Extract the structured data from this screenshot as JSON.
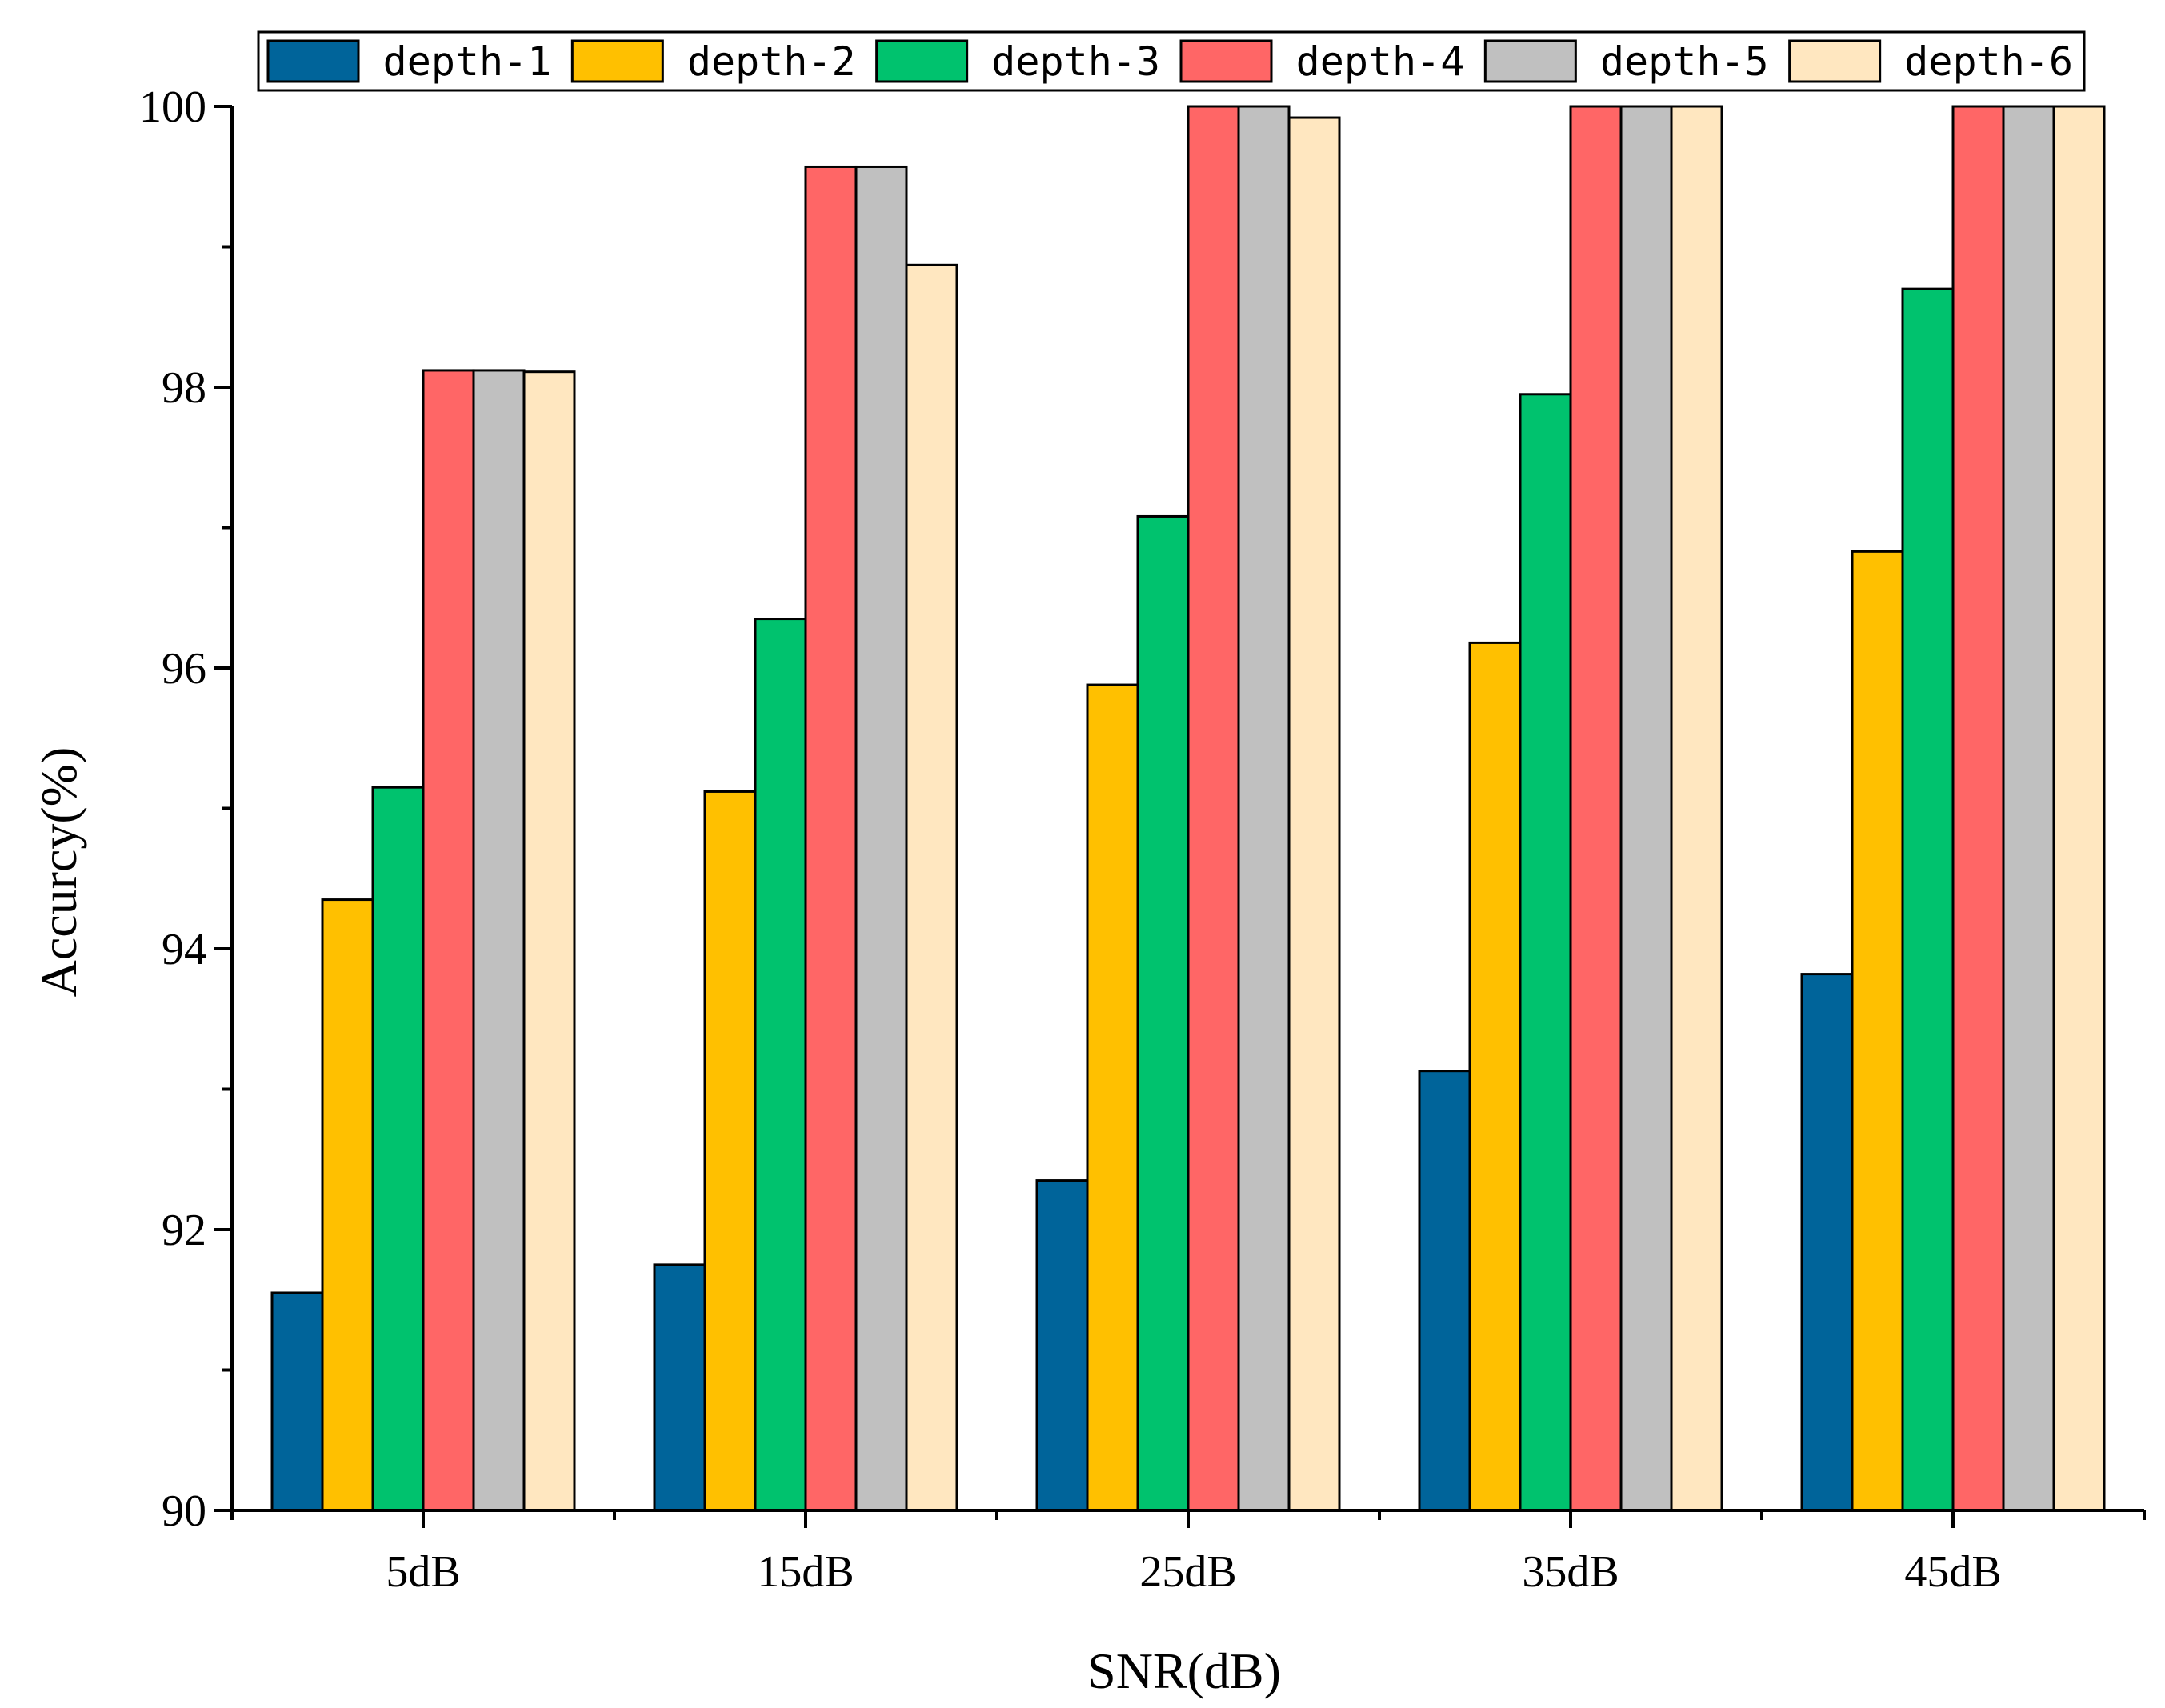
{
  "chart_data": {
    "type": "bar",
    "title": "",
    "xlabel": "SNR(dB)",
    "ylabel": "Accurcy(%)",
    "ylim": [
      90,
      100
    ],
    "yticks": [
      90,
      92,
      94,
      96,
      98,
      100
    ],
    "ytick_labels": [
      "90",
      "92",
      "94",
      "96",
      "98",
      "100"
    ],
    "categories": [
      "5dB",
      "15dB",
      "25dB",
      "35dB",
      "45dB"
    ],
    "legend_position": "top",
    "series": [
      {
        "name": "depth-1",
        "color": "#00649A",
        "values": [
          91.55,
          91.75,
          92.35,
          93.13,
          93.82
        ]
      },
      {
        "name": "depth-2",
        "color": "#FFC000",
        "values": [
          94.35,
          95.12,
          95.88,
          96.18,
          96.83
        ]
      },
      {
        "name": "depth-3",
        "color": "#00C26E",
        "values": [
          95.15,
          96.35,
          97.08,
          97.95,
          98.7
        ]
      },
      {
        "name": "depth-4",
        "color": "#FF6666",
        "values": [
          98.12,
          99.57,
          100,
          100,
          100
        ]
      },
      {
        "name": "depth-5",
        "color": "#C0C0C0",
        "values": [
          98.12,
          99.57,
          100,
          100,
          100
        ]
      },
      {
        "name": "depth-6",
        "color": "#FFE7C0",
        "values": [
          98.11,
          98.87,
          99.92,
          100,
          100
        ]
      }
    ]
  }
}
